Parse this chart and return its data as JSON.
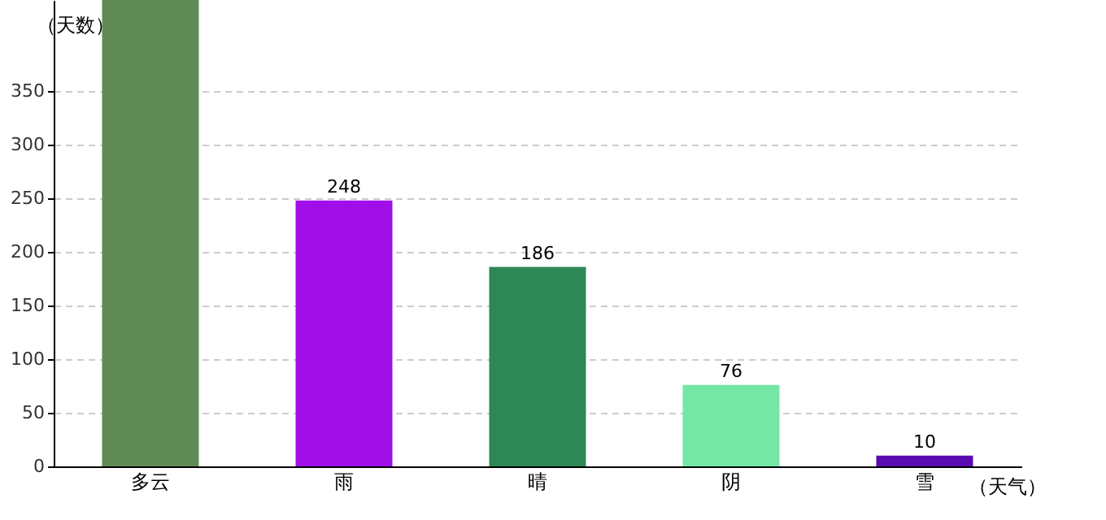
{
  "chart_data": {
    "type": "bar",
    "xlabel": "（天气）",
    "ylabel": "（天数）",
    "categories": [
      "多云",
      "雨",
      "晴",
      "阴",
      "雪"
    ],
    "values": [
      435,
      248,
      186,
      76,
      10
    ],
    "value_labels": [
      null,
      "248",
      "186",
      "76",
      "10"
    ],
    "colors": [
      "#608a55",
      "#a00ee8",
      "#2e8757",
      "#75e6a6",
      "#5a0cb0"
    ],
    "ylim": [
      0,
      435
    ],
    "yticks": [
      0,
      50,
      100,
      150,
      200,
      250,
      300,
      350
    ],
    "grid": "y"
  }
}
